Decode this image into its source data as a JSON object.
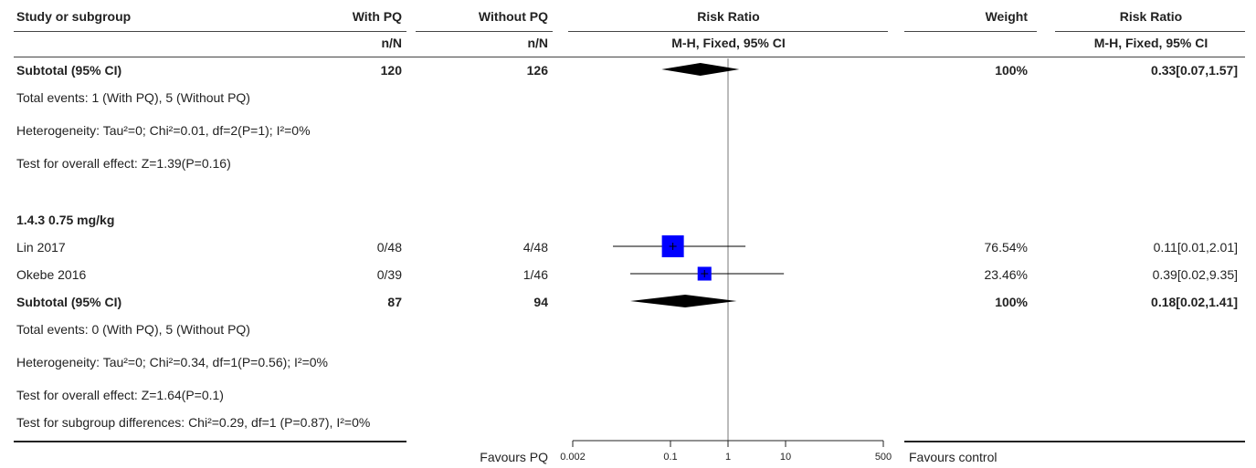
{
  "header": {
    "study_col": "Study or subgroup",
    "with_pq": "With PQ",
    "without_pq": "Without PQ",
    "risk_ratio": "Risk Ratio",
    "weight": "Weight",
    "risk_ratio_right": "Risk Ratio",
    "nN_with": "n/N",
    "nN_without": "n/N",
    "method_mid": "M-H, Fixed, 95% CI",
    "method_right": "M-H, Fixed, 95% CI"
  },
  "rows": {
    "sub1": {
      "label": "Subtotal (95% CI)",
      "with": "120",
      "without": "126",
      "weight": "100%",
      "ci": "0.33[0.07,1.57]"
    },
    "sub1_events": "Total events: 1 (With PQ), 5 (Without PQ)",
    "sub1_het": "Heterogeneity: Tau²=0; Chi²=0.01, df=2(P=1); I²=0%",
    "sub1_test": "Test for overall effect: Z=1.39(P=0.16)",
    "group_title": "1.4.3 0.75 mg/kg",
    "lin": {
      "label": "Lin 2017",
      "with": "0/48",
      "without": "4/48",
      "weight": "76.54%",
      "ci": "0.11[0.01,2.01]"
    },
    "okebe": {
      "label": "Okebe 2016",
      "with": "0/39",
      "without": "1/46",
      "weight": "23.46%",
      "ci": "0.39[0.02,9.35]"
    },
    "sub2": {
      "label": "Subtotal (95% CI)",
      "with": "87",
      "without": "94",
      "weight": "100%",
      "ci": "0.18[0.02,1.41]"
    },
    "sub2_events": "Total events: 0 (With PQ), 5 (Without PQ)",
    "sub2_het": "Heterogeneity: Tau²=0; Chi²=0.34, df=1(P=0.56); I²=0%",
    "sub2_test": "Test for overall effect: Z=1.64(P=0.1)",
    "subgroup_diff": "Test for subgroup differences: Chi²=0.29, df=1 (P=0.87), I²=0%"
  },
  "footer": {
    "favours_left": "Favours PQ",
    "favours_right": "Favours control"
  },
  "chart_data": {
    "type": "forest",
    "scale": "log",
    "xlim": [
      0.002,
      500
    ],
    "ticks": [
      "0.002",
      "0.1",
      "1",
      "10",
      "500"
    ],
    "tick_values": [
      0.002,
      0.1,
      1,
      10,
      500
    ],
    "null_line": 1,
    "studies": [
      {
        "name": "Lin 2017",
        "rr": 0.11,
        "lo": 0.01,
        "hi": 2.01,
        "weight": 76.54,
        "color": "#0000ff"
      },
      {
        "name": "Okebe 2016",
        "rr": 0.39,
        "lo": 0.02,
        "hi": 9.35,
        "weight": 23.46,
        "color": "#0000ff"
      }
    ],
    "diamonds": [
      {
        "name": "Subtotal 1",
        "rr": 0.33,
        "lo": 0.07,
        "hi": 1.57
      },
      {
        "name": "Subtotal 2",
        "rr": 0.18,
        "lo": 0.02,
        "hi": 1.41
      }
    ]
  }
}
